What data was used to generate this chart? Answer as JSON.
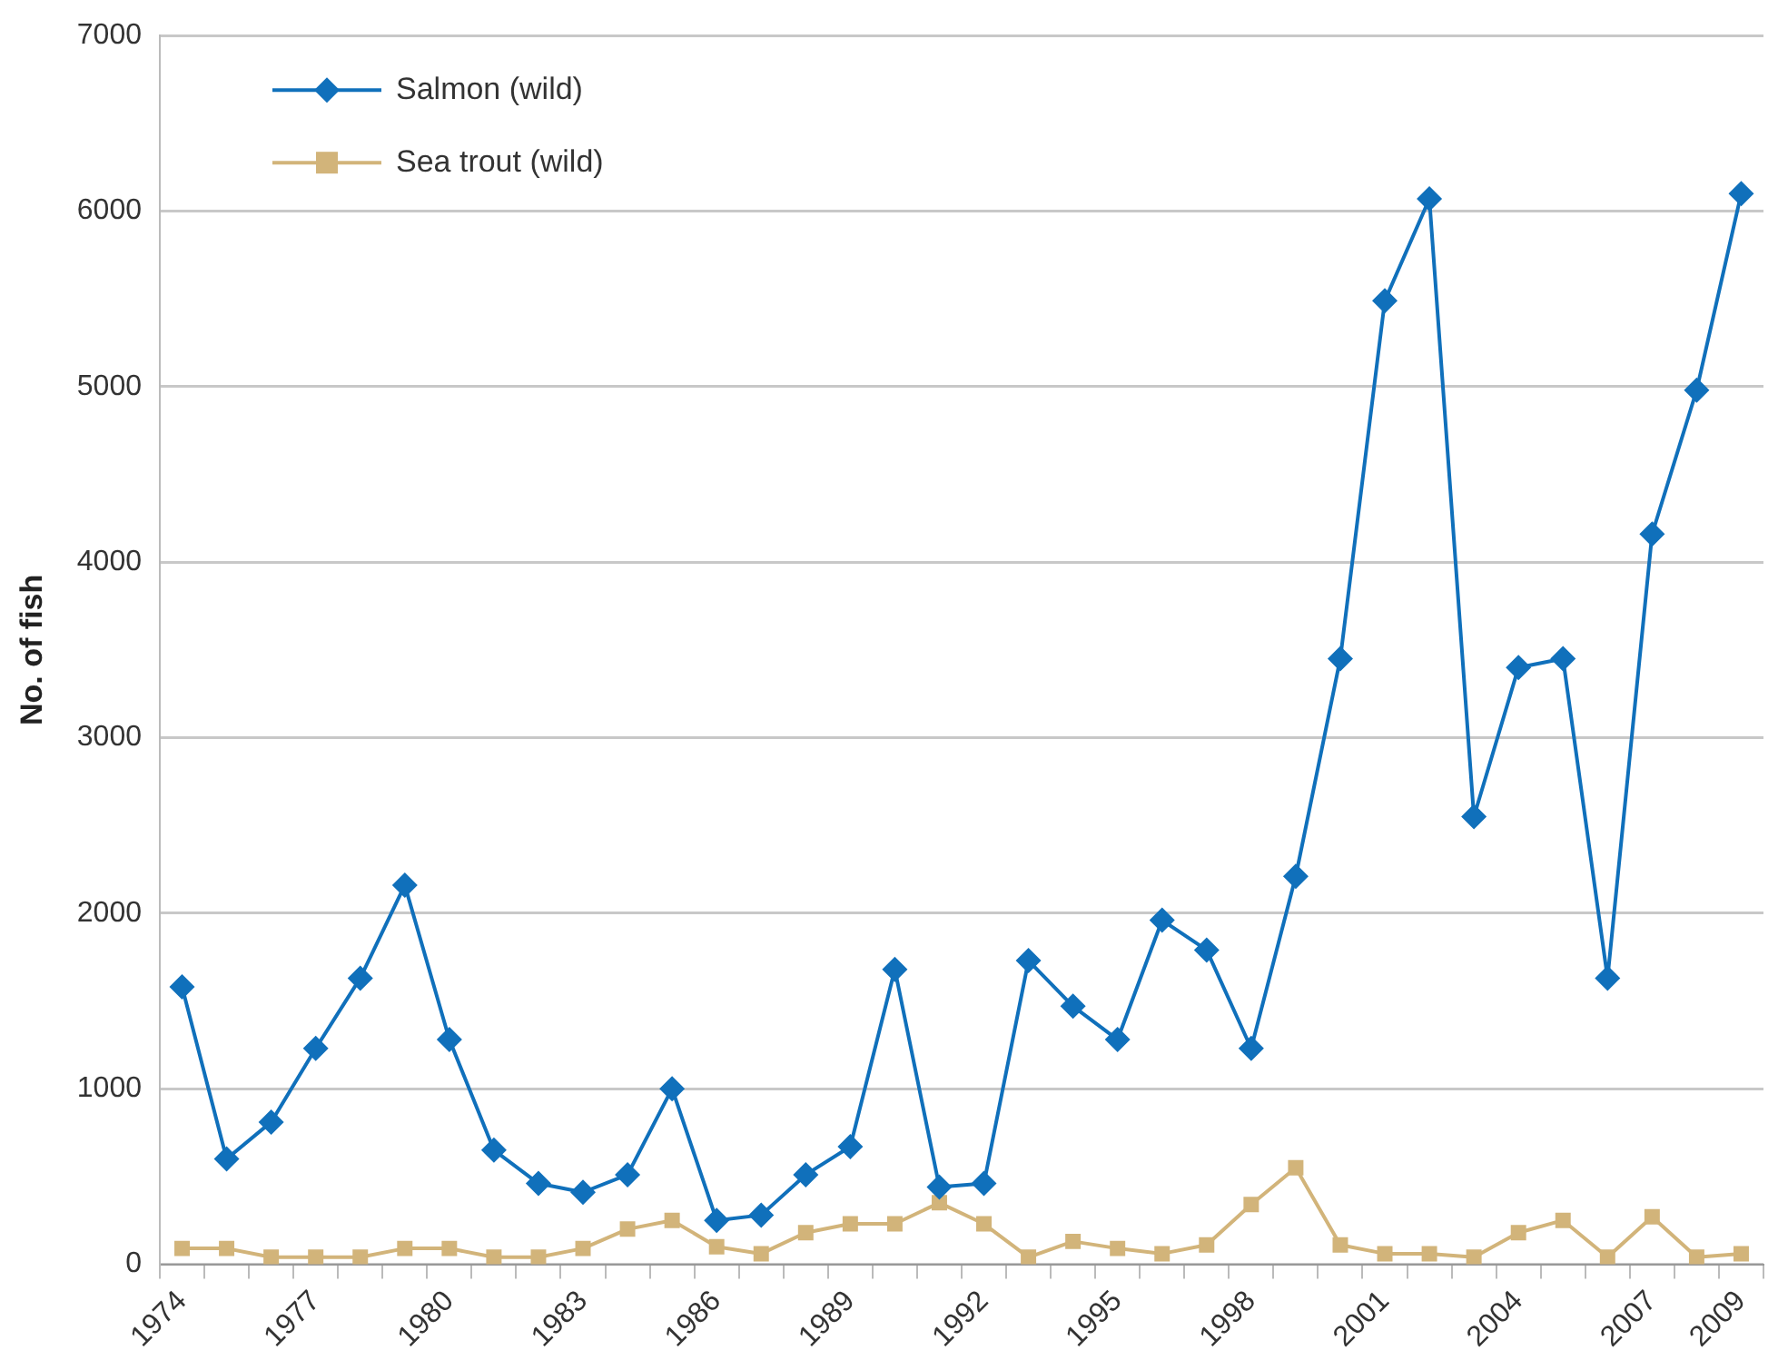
{
  "chart_data": {
    "type": "line",
    "ylabel": "No. of fish",
    "categories": [
      "1974",
      null,
      null,
      "1977",
      null,
      null,
      "1980",
      null,
      null,
      "1983",
      null,
      null,
      "1986",
      null,
      null,
      "1989",
      null,
      null,
      "1992",
      null,
      null,
      "1995",
      null,
      null,
      "1998",
      null,
      null,
      "2001",
      null,
      null,
      "2004",
      null,
      null,
      "2007",
      null,
      "2009"
    ],
    "series": [
      {
        "name": "Salmon (wild)",
        "color": "#1070bb",
        "marker": "diamond",
        "values": [
          1580,
          600,
          810,
          1230,
          1630,
          2160,
          1280,
          650,
          460,
          410,
          510,
          1000,
          250,
          280,
          510,
          670,
          1680,
          440,
          460,
          1730,
          1470,
          1280,
          1960,
          1790,
          1230,
          2210,
          3450,
          5490,
          6070,
          2550,
          3400,
          3450,
          1630,
          4160,
          4980,
          6100
        ]
      },
      {
        "name": "Sea trout (wild)",
        "color": "#d2b47a",
        "marker": "square",
        "values": [
          90,
          90,
          40,
          40,
          40,
          90,
          90,
          40,
          40,
          90,
          200,
          250,
          100,
          60,
          180,
          230,
          230,
          350,
          230,
          40,
          130,
          90,
          60,
          110,
          340,
          550,
          110,
          60,
          60,
          40,
          180,
          250,
          40,
          270,
          40,
          60
        ]
      }
    ],
    "ylim": [
      0,
      7000
    ],
    "yticks": [
      0,
      1000,
      2000,
      3000,
      4000,
      5000,
      6000,
      7000
    ],
    "grid": "y",
    "legend": "top left",
    "line_style": "solid"
  }
}
